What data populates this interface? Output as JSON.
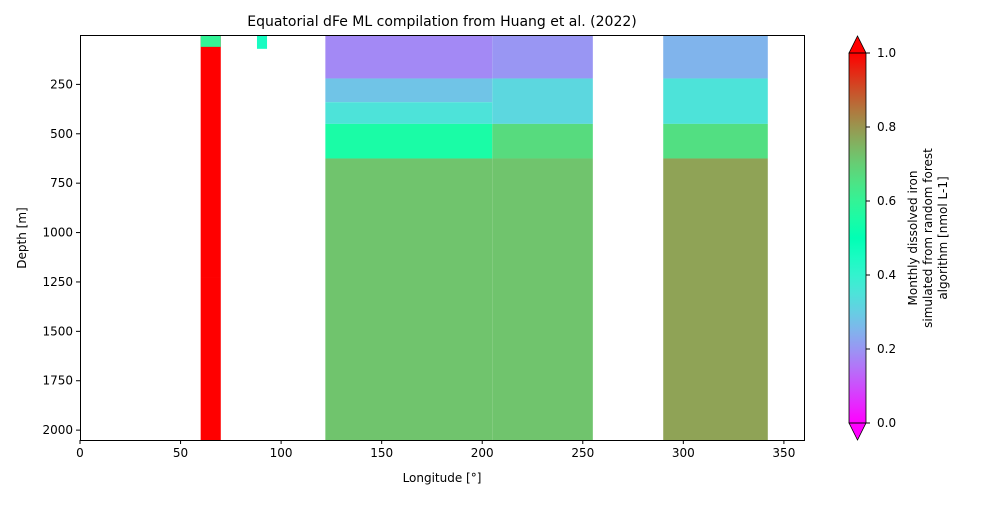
{
  "chart_data": {
    "type": "heatmap",
    "title": "Equatorial dFe ML compilation from Huang et al. (2022)",
    "xlabel": "Longitude [°]",
    "ylabel": "Depth [m]",
    "xlim": [
      0,
      360
    ],
    "ylim": [
      2050,
      0
    ],
    "y_inverted": true,
    "x_ticks": [
      0,
      50,
      100,
      150,
      200,
      250,
      300,
      350
    ],
    "y_ticks": [
      250,
      500,
      750,
      1000,
      1250,
      1500,
      1750,
      2000
    ],
    "colorbar": {
      "label_lines": [
        "Monthly dissolved iron",
        "simulated from random forest",
        "algorithm [nmol L-1]"
      ],
      "colormap": "rainbow",
      "vmin": 0.0,
      "vmax": 1.0,
      "ticks": [
        0.0,
        0.2,
        0.4,
        0.6,
        0.8,
        1.0
      ],
      "extend": "both"
    },
    "grid": false,
    "depth_levels": [
      0,
      450,
      625,
      900,
      1225,
      1625,
      2050
    ],
    "cell_estimates": [
      {
        "lon": [
          60,
          70
        ],
        "depth": [
          0,
          1225
        ],
        "value": 1.0
      },
      {
        "lon": [
          60,
          70
        ],
        "depth": [
          1225,
          2050
        ],
        "value": 1.0
      },
      {
        "lon": [
          60,
          70
        ],
        "depth": [
          0,
          60
        ],
        "value": 0.6
      },
      {
        "lon": [
          88,
          93
        ],
        "depth": [
          0,
          70
        ],
        "value": 0.45
      },
      {
        "lon": [
          122,
          205
        ],
        "depth": [
          0,
          220
        ],
        "value": 0.18
      },
      {
        "lon": [
          122,
          205
        ],
        "depth": [
          220,
          340
        ],
        "value": 0.28
      },
      {
        "lon": [
          122,
          205
        ],
        "depth": [
          340,
          450
        ],
        "value": 0.35
      },
      {
        "lon": [
          122,
          205
        ],
        "depth": [
          450,
          625
        ],
        "value": 0.55
      },
      {
        "lon": [
          122,
          205
        ],
        "depth": [
          625,
          2050
        ],
        "value": 0.72
      },
      {
        "lon": [
          205,
          255
        ],
        "depth": [
          0,
          220
        ],
        "value": 0.2
      },
      {
        "lon": [
          205,
          255
        ],
        "depth": [
          220,
          450
        ],
        "value": 0.32
      },
      {
        "lon": [
          205,
          255
        ],
        "depth": [
          450,
          625
        ],
        "value": 0.67
      },
      {
        "lon": [
          205,
          255
        ],
        "depth": [
          625,
          2050
        ],
        "value": 0.72
      },
      {
        "lon": [
          290,
          342
        ],
        "depth": [
          0,
          220
        ],
        "value": 0.25
      },
      {
        "lon": [
          290,
          342
        ],
        "depth": [
          220,
          450
        ],
        "value": 0.35
      },
      {
        "lon": [
          290,
          342
        ],
        "depth": [
          450,
          625
        ],
        "value": 0.66
      },
      {
        "lon": [
          290,
          342
        ],
        "depth": [
          625,
          2050
        ],
        "value": 0.78
      }
    ]
  }
}
